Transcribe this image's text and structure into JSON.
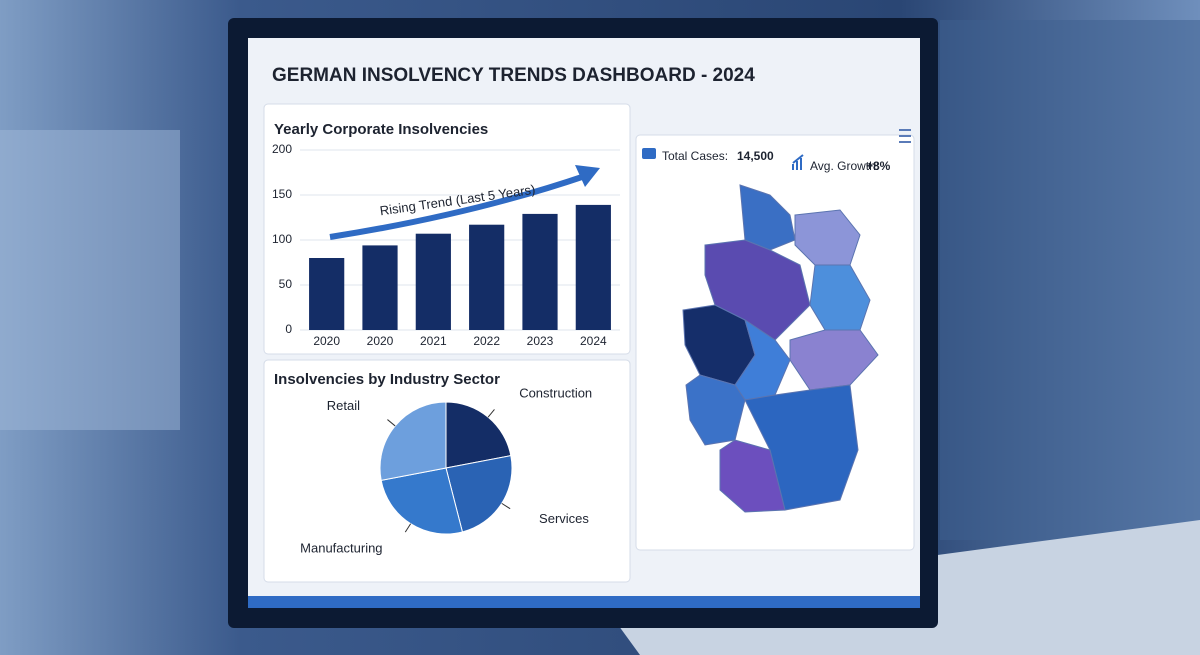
{
  "header": {
    "title": "GERMAN INSOLVENCY TRENDS DASHBOARD - 2024"
  },
  "chart_data": [
    {
      "type": "bar",
      "title": "Yearly Corporate Insolvencies",
      "categories": [
        "2020",
        "2020",
        "2021",
        "2022",
        "2023",
        "2024"
      ],
      "values": [
        80,
        94,
        107,
        117,
        129,
        139
      ],
      "color": "#142d66",
      "ylim": [
        0,
        200
      ],
      "yticks": [
        0,
        50,
        100,
        150,
        200
      ],
      "grid": true,
      "annotation": "Rising Trend (Last 5 Years)"
    },
    {
      "type": "pie",
      "title": "Insolvencies by Industry Sector",
      "categories": [
        "Construction",
        "Services",
        "Manufacturing",
        "Retail"
      ],
      "values": [
        22,
        24,
        26,
        28
      ],
      "colors": [
        "#142d66",
        "#2a63b4",
        "#3579cc",
        "#6d9fdd"
      ]
    }
  ],
  "stats": {
    "total_cases": {
      "label": "Total Cases:",
      "value": "14,500"
    },
    "avg_growth": {
      "label": "Avg. Growth:",
      "value": "+8%"
    }
  }
}
